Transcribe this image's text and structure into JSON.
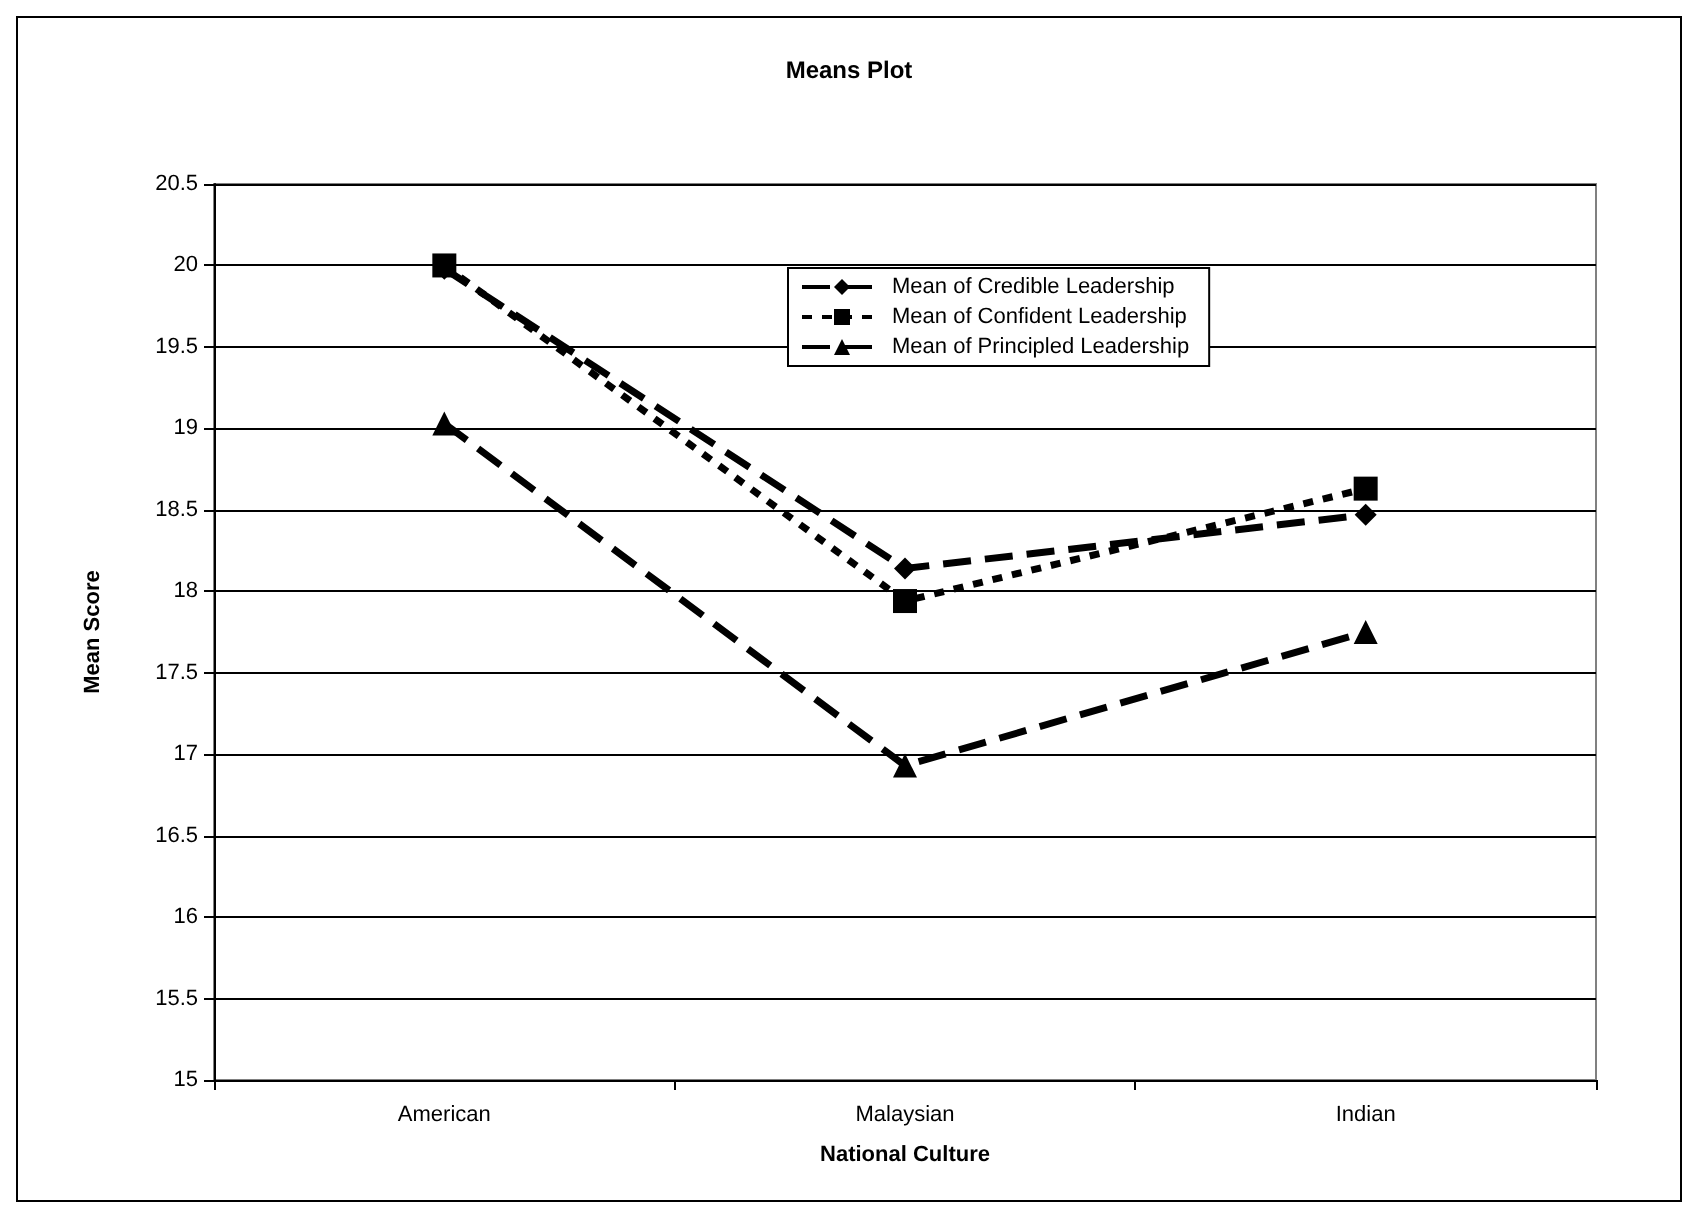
{
  "chart_data": {
    "type": "line",
    "title": "Means Plot",
    "xlabel": "National Culture",
    "ylabel": "Mean Score",
    "categories": [
      "American",
      "Malaysian",
      "Indian"
    ],
    "series": [
      {
        "name": "Mean of Credible Leadership",
        "color": "#000000",
        "marker": "diamond",
        "line_style": "dashed",
        "values": [
          19.98,
          18.14,
          18.47
        ]
      },
      {
        "name": "Mean of Confident Leadership",
        "color": "#000000",
        "marker": "square",
        "line_style": "dotted",
        "values": [
          20.0,
          17.94,
          18.63
        ]
      },
      {
        "name": "Mean of Principled Leadership",
        "color": "#000000",
        "marker": "triangle",
        "line_style": "dashed",
        "values": [
          19.03,
          16.93,
          17.75
        ]
      }
    ],
    "ylim": [
      15,
      20.5
    ],
    "yticks": [
      15,
      15.5,
      16,
      16.5,
      17,
      17.5,
      18,
      18.5,
      19,
      19.5,
      20,
      20.5
    ],
    "grid": "y",
    "legend": "top"
  }
}
